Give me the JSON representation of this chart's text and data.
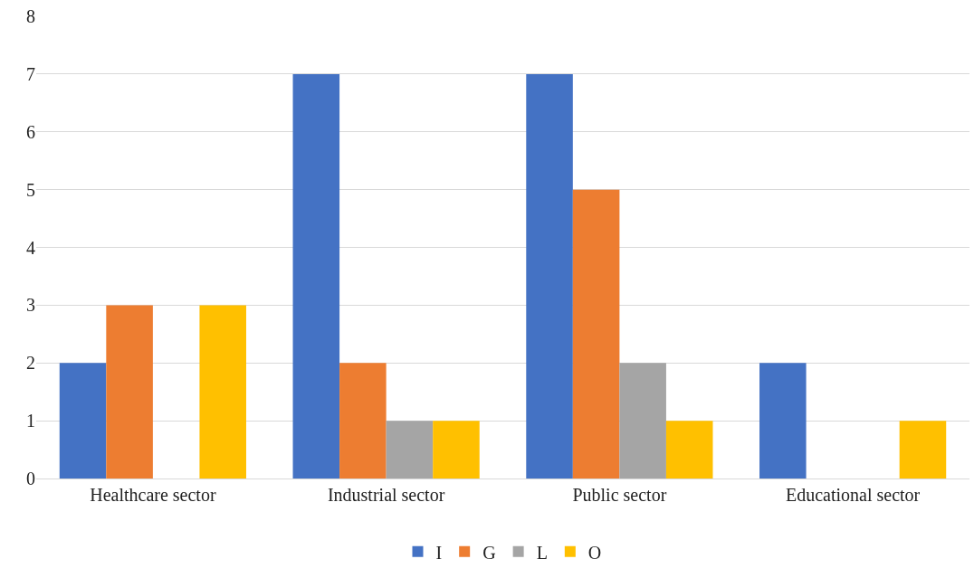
{
  "chart_data": {
    "type": "bar",
    "categories": [
      "Healthcare sector",
      "Industrial sector",
      "Public sector",
      "Educational sector"
    ],
    "series": [
      {
        "name": "I",
        "color": "#4472c4",
        "values": [
          2,
          7,
          7,
          2
        ]
      },
      {
        "name": "G",
        "color": "#ed7d31",
        "values": [
          3,
          2,
          5,
          0
        ]
      },
      {
        "name": "L",
        "color": "#a5a5a5",
        "values": [
          0,
          1,
          2,
          0
        ]
      },
      {
        "name": "O",
        "color": "#ffc000",
        "values": [
          3,
          1,
          1,
          1
        ]
      }
    ],
    "ylim": [
      0,
      8
    ],
    "yticks": [
      0,
      1,
      2,
      3,
      4,
      5,
      6,
      7,
      8
    ],
    "grid": "y",
    "legend": "bottom"
  }
}
